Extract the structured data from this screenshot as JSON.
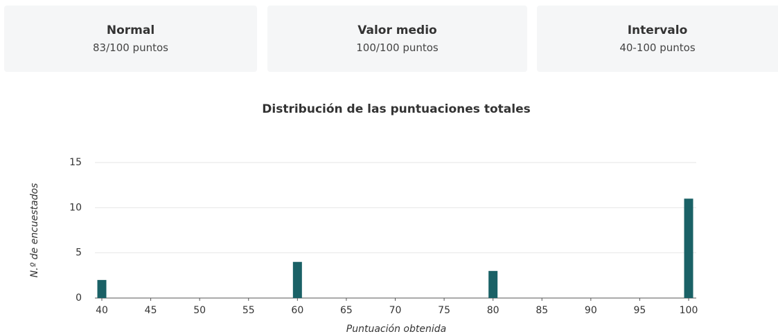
{
  "cards": [
    {
      "title": "Normal",
      "subtitle": "83/100 puntos"
    },
    {
      "title": "Valor medio",
      "subtitle": "100/100 puntos"
    },
    {
      "title": "Intervalo",
      "subtitle": "40-100 puntos"
    }
  ],
  "chart_data": {
    "type": "bar",
    "title": "Distribución de las puntuaciones totales",
    "xlabel": "Puntuación obtenida",
    "ylabel": "N.º de encuestados",
    "x": [
      40,
      60,
      80,
      100
    ],
    "values": [
      2,
      4,
      3,
      11
    ],
    "color": "#1a6166",
    "xlim": [
      40,
      100
    ],
    "xticks": [
      40,
      45,
      50,
      55,
      60,
      65,
      70,
      75,
      80,
      85,
      90,
      95,
      100
    ],
    "ylim": [
      0,
      15
    ],
    "yticks": [
      0,
      5,
      10,
      15
    ],
    "grid": true
  }
}
